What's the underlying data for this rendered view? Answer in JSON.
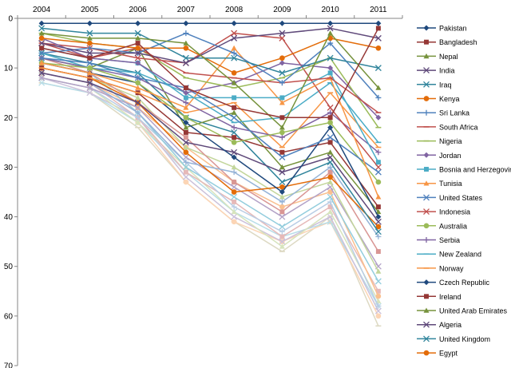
{
  "chart_data": {
    "type": "line",
    "title": "",
    "xlabel": "",
    "ylabel": "",
    "x": [
      "2004",
      "2005",
      "2006",
      "2007",
      "2008",
      "2009",
      "2010",
      "2011"
    ],
    "ylim": [
      0,
      70
    ],
    "y_inverted": true,
    "x_axis_position": "top",
    "y_ticks": [
      0,
      10,
      20,
      30,
      40,
      50,
      60,
      70
    ],
    "grid": false,
    "legend": "right",
    "series": [
      {
        "name": "Pakistan",
        "color": "#1F497D",
        "marker": "diamond",
        "values": [
          1,
          1,
          1,
          1,
          1,
          1,
          1,
          1
        ]
      },
      {
        "name": "Bangladesh",
        "color": "#953735",
        "marker": "square",
        "values": [
          6,
          8,
          5,
          14,
          18,
          20,
          20,
          2
        ]
      },
      {
        "name": "Nepal",
        "color": "#76923C",
        "marker": "triangle",
        "values": [
          3,
          4,
          4,
          5,
          13,
          22,
          3,
          14
        ]
      },
      {
        "name": "India",
        "color": "#5F497A",
        "marker": "x",
        "values": [
          5,
          7,
          7,
          9,
          4,
          3,
          2,
          4
        ]
      },
      {
        "name": "Iraq",
        "color": "#31859C",
        "marker": "x",
        "values": [
          2,
          3,
          3,
          8,
          8,
          11,
          8,
          10
        ]
      },
      {
        "name": "Kenya",
        "color": "#E36C09",
        "marker": "circle",
        "values": [
          4,
          5,
          6,
          6,
          11,
          8,
          4,
          6
        ]
      },
      {
        "name": "Sri Lanka",
        "color": "#4F81BD",
        "marker": "plus",
        "values": [
          7,
          6,
          7,
          3,
          7,
          13,
          5,
          16
        ]
      },
      {
        "name": "South Africa",
        "color": "#C0504D",
        "marker": "line",
        "values": [
          5,
          8,
          6,
          11,
          12,
          13,
          12,
          19
        ]
      },
      {
        "name": "Nigeria",
        "color": "#9BBB59",
        "marker": "line",
        "values": [
          3,
          5,
          6,
          12,
          14,
          12,
          8,
          22
        ]
      },
      {
        "name": "Jordan",
        "color": "#8064A2",
        "marker": "diamond",
        "values": [
          4,
          8,
          9,
          15,
          13,
          9,
          10,
          20
        ]
      },
      {
        "name": "Bosnia and Herzegovina",
        "color": "#4BACC6",
        "marker": "square",
        "values": [
          6,
          8,
          9,
          16,
          16,
          16,
          11,
          29
        ]
      },
      {
        "name": "Tunisia",
        "color": "#F79646",
        "marker": "triangle",
        "values": [
          9,
          11,
          14,
          18,
          6,
          17,
          12,
          36
        ]
      },
      {
        "name": "United States",
        "color": "#4F81BD",
        "marker": "x",
        "values": [
          8,
          9,
          12,
          14,
          20,
          28,
          24,
          31
        ]
      },
      {
        "name": "Indonesia",
        "color": "#C0504D",
        "marker": "x",
        "values": [
          5,
          6,
          8,
          9,
          3,
          4,
          18,
          30
        ]
      },
      {
        "name": "Australia",
        "color": "#9BBB59",
        "marker": "circle",
        "values": [
          9,
          10,
          13,
          20,
          25,
          23,
          21,
          33
        ]
      },
      {
        "name": "Serbia",
        "color": "#8064A2",
        "marker": "plus",
        "values": [
          8,
          10,
          12,
          17,
          22,
          24,
          19,
          27
        ]
      },
      {
        "name": "New Zealand",
        "color": "#4BACC6",
        "marker": "line",
        "values": [
          7,
          10,
          11,
          15,
          21,
          20,
          13,
          25
        ]
      },
      {
        "name": "Norway",
        "color": "#F79646",
        "marker": "line",
        "values": [
          10,
          12,
          15,
          19,
          17,
          26,
          15,
          26
        ]
      },
      {
        "name": "Czech Republic",
        "color": "#1F497D",
        "marker": "diamond",
        "values": [
          9,
          11,
          13,
          21,
          28,
          35,
          22,
          40
        ]
      },
      {
        "name": "Ireland",
        "color": "#953735",
        "marker": "square",
        "values": [
          10,
          12,
          15,
          23,
          24,
          27,
          25,
          38
        ]
      },
      {
        "name": "United Arab Emirates",
        "color": "#76923C",
        "marker": "triangle",
        "values": [
          8,
          10,
          6,
          22,
          19,
          30,
          27,
          39
        ]
      },
      {
        "name": "Algeria",
        "color": "#5F497A",
        "marker": "x",
        "values": [
          11,
          13,
          17,
          25,
          27,
          31,
          28,
          41
        ]
      },
      {
        "name": "United Kingdom",
        "color": "#31859C",
        "marker": "x",
        "values": [
          7,
          9,
          11,
          20,
          23,
          33,
          29,
          43
        ]
      },
      {
        "name": "Egypt",
        "color": "#E36C09",
        "marker": "circle",
        "values": [
          10,
          12,
          17,
          27,
          35,
          34,
          32,
          42
        ]
      },
      {
        "name": "",
        "color": "#95B3D7",
        "marker": "plus",
        "values": [
          11,
          13,
          19,
          29,
          31,
          37,
          30,
          44
        ]
      },
      {
        "name": "",
        "color": "#D99694",
        "marker": "square",
        "values": [
          8,
          11,
          17,
          24,
          33,
          39,
          31,
          47
        ]
      },
      {
        "name": "",
        "color": "#C3D69B",
        "marker": "triangle",
        "values": [
          10,
          12,
          16,
          26,
          30,
          36,
          33,
          51
        ]
      },
      {
        "name": "",
        "color": "#B3A2C7",
        "marker": "x",
        "values": [
          12,
          14,
          18,
          28,
          34,
          40,
          34,
          50
        ]
      },
      {
        "name": "",
        "color": "#93CDDD",
        "marker": "x",
        "values": [
          9,
          11,
          19,
          30,
          36,
          42,
          36,
          53
        ]
      },
      {
        "name": "",
        "color": "#FAC08F",
        "marker": "circle",
        "values": [
          11,
          13,
          18,
          26,
          33,
          38,
          35,
          56
        ]
      },
      {
        "name": "",
        "color": "#B9CDE5",
        "marker": "plus",
        "values": [
          12,
          14,
          20,
          29,
          38,
          43,
          37,
          58
        ]
      },
      {
        "name": "",
        "color": "#E6B9B8",
        "marker": "square",
        "values": [
          11,
          13,
          20,
          31,
          37,
          44,
          38,
          55
        ]
      },
      {
        "name": "",
        "color": "#D7E4BD",
        "marker": "triangle",
        "values": [
          12,
          14,
          21,
          30,
          39,
          46,
          39,
          57
        ]
      },
      {
        "name": "",
        "color": "#CCC1DA",
        "marker": "x",
        "values": [
          12,
          15,
          20,
          32,
          40,
          45,
          40,
          59
        ]
      },
      {
        "name": "",
        "color": "#B7DDE8",
        "marker": "x",
        "values": [
          13,
          15,
          21,
          31,
          39,
          44,
          41,
          58
        ]
      },
      {
        "name": "",
        "color": "#FCD5B5",
        "marker": "circle",
        "values": [
          12,
          14,
          21,
          33,
          41,
          45,
          41,
          60
        ]
      },
      {
        "name": "",
        "color": "#DDD9C3",
        "marker": "line",
        "values": [
          13,
          15,
          22,
          33,
          41,
          47,
          40,
          62
        ]
      }
    ]
  }
}
